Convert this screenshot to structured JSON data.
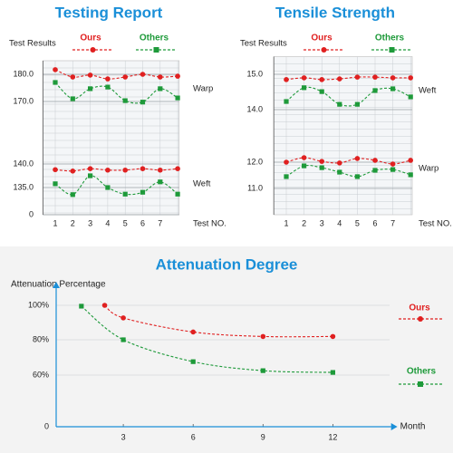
{
  "chart_data": [
    {
      "type": "line",
      "title": "Testing Report",
      "y_label": "Test Results",
      "x_label": "Test NO.",
      "categories": [
        1,
        2,
        3,
        4,
        5,
        6,
        7,
        null
      ],
      "ylim": [
        0,
        185
      ],
      "yticks": [
        0,
        {
          "value": 135,
          "label": "135.0"
        },
        {
          "value": 140,
          "label": "140.0"
        },
        {
          "value": 170,
          "label": "170.0"
        },
        {
          "value": 180,
          "label": "180.0"
        }
      ],
      "series": [
        {
          "name": "Ours",
          "color": "#e02020"
        },
        {
          "name": "Others",
          "color": "#1e9a3a"
        }
      ],
      "groups": [
        {
          "label": "Warp",
          "values": [
            [
              181.7,
              179,
              179.7,
              178.3,
              179,
              180,
              179,
              179.3
            ],
            [
              177,
              171,
              174.7,
              175.3,
              170.3,
              169.7,
              174.7,
              171.3
            ]
          ]
        },
        {
          "label": "Weft",
          "values": [
            [
              138.8,
              138.5,
              139,
              138.7,
              138.7,
              139,
              138.7,
              139
            ],
            [
              135.8,
              133.5,
              137.5,
              135,
              133.6,
              134,
              136.2,
              133.6
            ]
          ]
        }
      ]
    },
    {
      "type": "line",
      "title": "Tensile Strength",
      "y_label": "Test Results",
      "x_label": "Test NO.",
      "categories": [
        1,
        2,
        3,
        4,
        5,
        6,
        7,
        null
      ],
      "ylim": [
        10,
        15.5
      ],
      "yticks": [
        {
          "value": 11,
          "label": "11.0"
        },
        {
          "value": 12,
          "label": "12.0"
        },
        {
          "value": 14,
          "label": "14.0"
        },
        {
          "value": 15,
          "label": "15.0"
        }
      ],
      "series": [
        {
          "name": "Ours",
          "color": "#e02020"
        },
        {
          "name": "Others",
          "color": "#1e9a3a"
        }
      ],
      "groups": [
        {
          "label": "Weft",
          "values": [
            [
              14.85,
              14.9,
              14.85,
              14.87,
              14.92,
              14.92,
              14.9,
              14.9
            ],
            [
              14.23,
              14.62,
              14.51,
              14.15,
              14.15,
              14.54,
              14.59,
              14.36
            ]
          ]
        },
        {
          "label": "Warp",
          "values": [
            [
              12.0,
              12.17,
              12.03,
              11.97,
              12.14,
              12.07,
              11.93,
              12.07
            ],
            [
              11.45,
              11.86,
              11.79,
              11.62,
              11.45,
              11.69,
              11.72,
              11.52
            ]
          ]
        }
      ]
    },
    {
      "type": "scatter-line",
      "title": "Attenuation Degree",
      "y_label": "Attenuation Percentage",
      "x_label": "Month",
      "xlim": [
        0,
        14.5
      ],
      "xticks": [
        3,
        6,
        9,
        12
      ],
      "ylim": [
        0,
        110
      ],
      "yticks": [
        0,
        {
          "value": 60,
          "label": "60%"
        },
        {
          "value": 80,
          "label": "80%"
        },
        {
          "value": 100,
          "label": "100%"
        }
      ],
      "series": [
        {
          "name": "Ours",
          "color": "#e02020",
          "x": [
            2.2,
            3,
            6,
            9,
            12
          ],
          "values": [
            100,
            92.7,
            84.5,
            81.9,
            81.9
          ]
        },
        {
          "name": "Others",
          "color": "#1e9a3a",
          "x": [
            1.2,
            3,
            6,
            9,
            12
          ],
          "values": [
            99.5,
            80,
            67.6,
            62.5,
            61.5
          ]
        }
      ]
    }
  ]
}
